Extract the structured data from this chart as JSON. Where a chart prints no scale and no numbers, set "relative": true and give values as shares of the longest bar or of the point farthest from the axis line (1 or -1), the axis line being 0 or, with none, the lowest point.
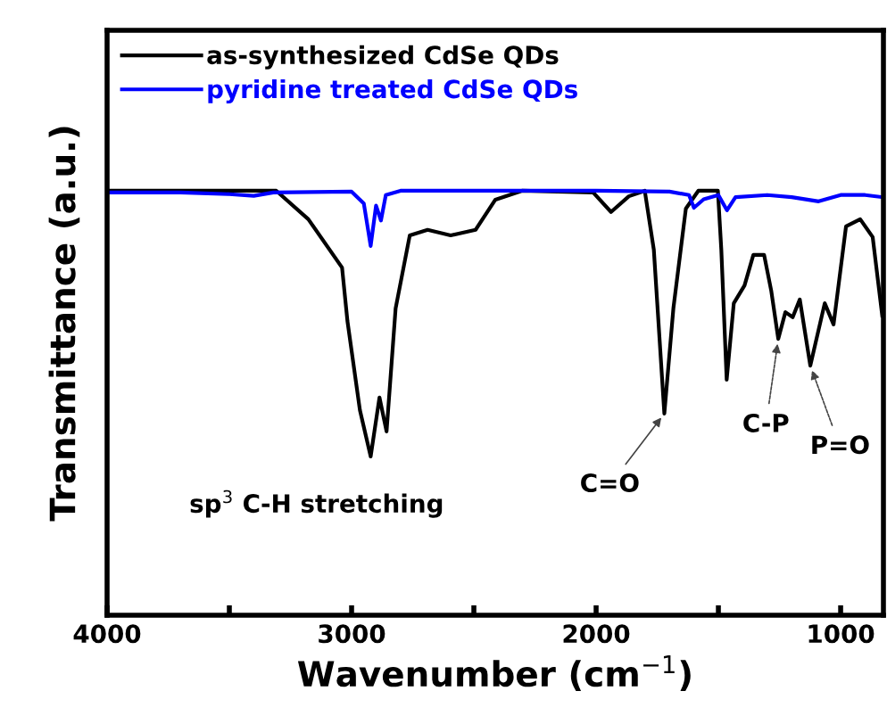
{
  "chart_data": {
    "type": "line",
    "relative": true,
    "xlabel": "Wavenumber (cm$^{−1}$)",
    "ylabel": "Transmittance (a.u.)",
    "xlim": [
      4000,
      825
    ],
    "xticks": [
      4000,
      {
        "value": 3500,
        "label": null
      },
      3000,
      {
        "value": 2500,
        "label": null
      },
      2000,
      {
        "value": 1500,
        "label": null
      },
      1000
    ],
    "legend": "top left",
    "grid": false,
    "line_style": "solid",
    "marker": "none",
    "series": [
      {
        "name": "as-synthesized CdSe QDs",
        "color": "#000000",
        "x": [
          4000,
          3700,
          3500,
          3308,
          3177,
          3039,
          3017,
          2966,
          2922,
          2886,
          2857,
          2820,
          2762,
          2689,
          2595,
          2493,
          2412,
          2303,
          2012,
          1939,
          1866,
          1801,
          1764,
          1721,
          1684,
          1633,
          1582,
          1502,
          1488,
          1466,
          1437,
          1393,
          1357,
          1313,
          1284,
          1255,
          1226,
          1196,
          1167,
          1124,
          1065,
          1029,
          978,
          920,
          869,
          830
        ],
        "values": [
          1.0,
          1.0,
          1.0,
          1.0,
          0.933,
          0.819,
          0.693,
          0.483,
          0.374,
          0.513,
          0.433,
          0.723,
          0.895,
          0.908,
          0.895,
          0.908,
          0.979,
          1.0,
          0.996,
          0.95,
          0.987,
          1.0,
          0.861,
          0.475,
          0.723,
          0.958,
          1.0,
          1.0,
          0.861,
          0.555,
          0.735,
          0.777,
          0.849,
          0.849,
          0.765,
          0.651,
          0.714,
          0.702,
          0.744,
          0.588,
          0.735,
          0.685,
          0.916,
          0.933,
          0.891,
          0.706
        ]
      },
      {
        "name": "pyridine treated CdSe QDs",
        "color": "#0000ff",
        "x": [
          4000,
          3700,
          3500,
          3400,
          3320,
          3000,
          2950,
          2922,
          2900,
          2880,
          2860,
          2800,
          2400,
          2000,
          1700,
          1620,
          1600,
          1560,
          1500,
          1465,
          1430,
          1300,
          1200,
          1090,
          1000,
          900,
          830
        ],
        "values": [
          0.996,
          0.996,
          0.992,
          0.988,
          0.996,
          0.998,
          0.97,
          0.87,
          0.965,
          0.93,
          0.99,
          1.0,
          1.0,
          1.0,
          0.998,
          0.99,
          0.96,
          0.98,
          0.99,
          0.954,
          0.985,
          0.99,
          0.985,
          0.975,
          0.99,
          0.99,
          0.985
        ]
      }
    ],
    "annotations": [
      "sp$^{3}$ C-H stretching",
      {
        "text": "C=O",
        "x": 1721,
        "y": 0.475
      },
      {
        "text": "C-P",
        "x": 1255,
        "y": 0.651
      },
      {
        "text": "P=O",
        "x": 1124,
        "y": 0.588
      }
    ]
  }
}
